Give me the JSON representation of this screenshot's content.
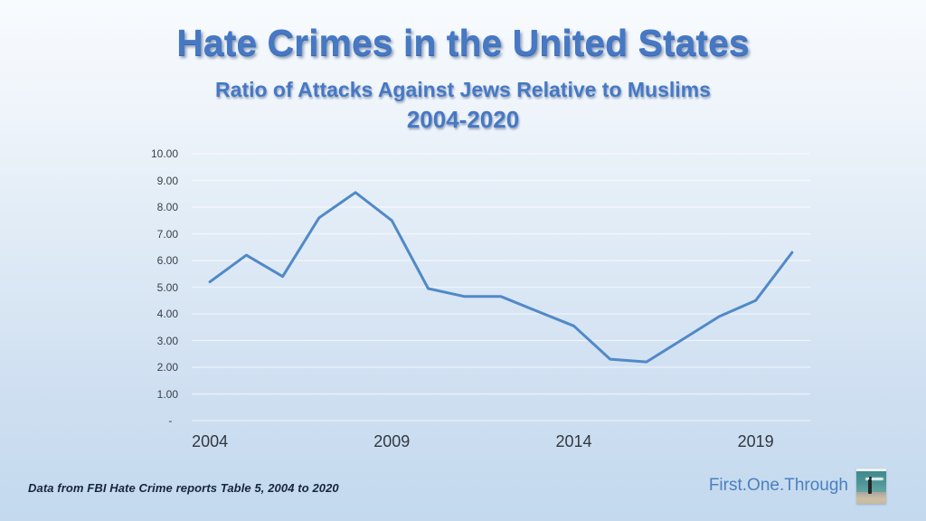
{
  "slide": {
    "footer_note": "Data from FBI Hate Crime reports Table 5, 2004 to 2020",
    "brand": "First.One.Through",
    "logo_name": "beach-person-logo"
  },
  "colors": {
    "title_blue": "#4678c4",
    "line_blue": "#5189c7",
    "brand_blue": "#4a80c0",
    "bg_top": "#f8fbfe",
    "bg_bottom": "#c3d9ee",
    "tick_text": "#3a3f46",
    "gridline": "rgba(255,255,255,0.6)",
    "axis_line": "rgba(235,242,248,0.9)"
  },
  "chart_data": {
    "type": "line",
    "title": "Hate Crimes in the United States",
    "subtitle": "Ratio of Attacks Against Jews Relative to Muslims",
    "subtitle2": "2004-2020",
    "series_name": "Ratio of attacks against Jews relative to Muslims",
    "x": [
      2004,
      2005,
      2006,
      2007,
      2008,
      2009,
      2010,
      2011,
      2012,
      2013,
      2014,
      2015,
      2016,
      2017,
      2018,
      2019,
      2020
    ],
    "values": [
      5.2,
      6.2,
      5.4,
      7.6,
      8.55,
      7.5,
      4.95,
      4.65,
      4.65,
      4.1,
      3.55,
      2.3,
      2.2,
      3.05,
      3.9,
      4.5,
      6.3
    ],
    "x_tick_labels": [
      "2004",
      "2009",
      "2014",
      "2019"
    ],
    "y_ticks": [
      {
        "value": 10,
        "label": "10.00"
      },
      {
        "value": 9,
        "label": "9.00"
      },
      {
        "value": 8,
        "label": "8.00"
      },
      {
        "value": 7,
        "label": "7.00"
      },
      {
        "value": 6,
        "label": "6.00"
      },
      {
        "value": 5,
        "label": "5.00"
      },
      {
        "value": 4,
        "label": "4.00"
      },
      {
        "value": 3,
        "label": "3.00"
      },
      {
        "value": 2,
        "label": "2.00"
      },
      {
        "value": 1,
        "label": "1.00"
      },
      {
        "value": 0,
        "label": "-  "
      }
    ],
    "ylim": [
      0,
      10
    ],
    "grid": true,
    "legend": false
  }
}
